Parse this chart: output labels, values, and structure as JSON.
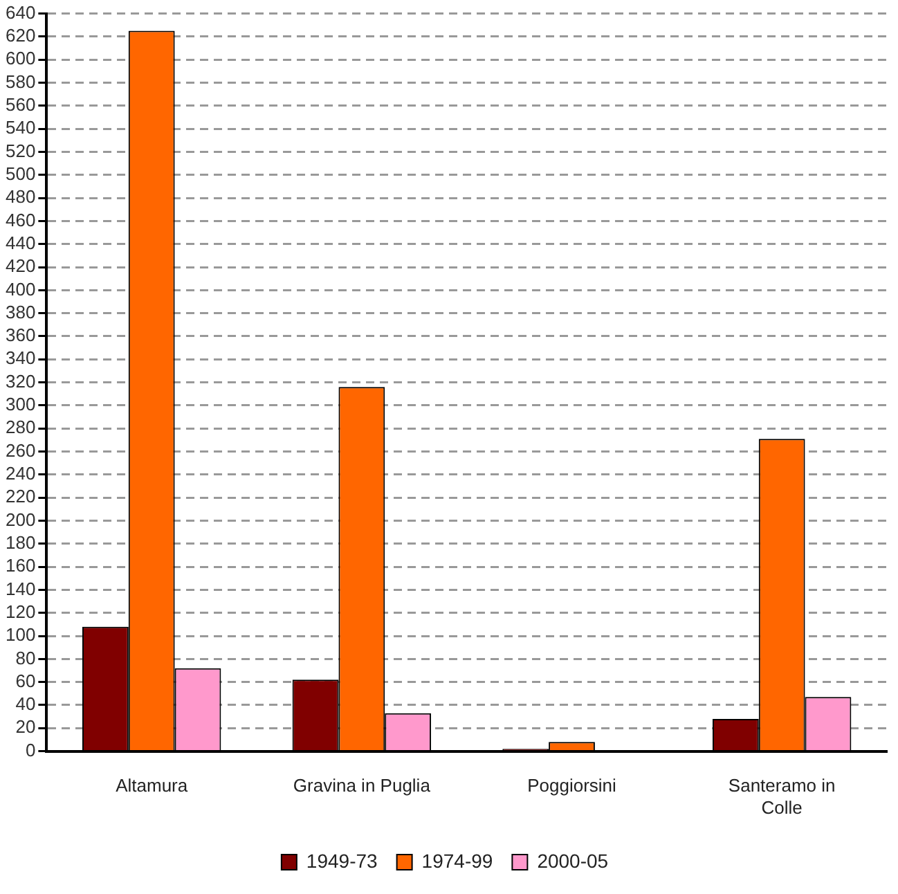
{
  "chart_data": {
    "type": "bar",
    "categories": [
      "Altamura",
      "Gravina in Puglia",
      "Poggiorsini",
      "Santeramo in Colle"
    ],
    "series": [
      {
        "name": "1949-73",
        "color": "#800000",
        "values": [
          108,
          62,
          2,
          28
        ]
      },
      {
        "name": "1974-99",
        "color": "#ff6600",
        "values": [
          625,
          316,
          8,
          271
        ]
      },
      {
        "name": "2000-05",
        "color": "#ff99cc",
        "values": [
          72,
          33,
          0,
          47
        ]
      }
    ],
    "ylim": [
      0,
      640
    ],
    "yticks": [
      0,
      20,
      40,
      60,
      80,
      100,
      120,
      140,
      160,
      180,
      200,
      220,
      240,
      260,
      280,
      300,
      320,
      340,
      360,
      380,
      400,
      420,
      440,
      460,
      480,
      500,
      520,
      540,
      560,
      580,
      600,
      620,
      640
    ],
    "grid": "y",
    "legend": "bottom"
  }
}
